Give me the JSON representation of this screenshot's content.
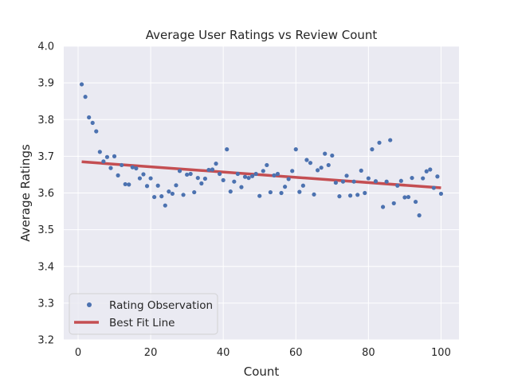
{
  "chart_data": {
    "type": "scatter",
    "title": "Average User Ratings vs Review Count",
    "xlabel": "Count",
    "ylabel": "Average Ratings",
    "xlim": [
      -3.95,
      104.95
    ],
    "ylim": [
      3.2,
      4.0
    ],
    "xticks": [
      0,
      20,
      40,
      60,
      80,
      100
    ],
    "yticks": [
      3.2,
      3.3,
      3.4,
      3.5,
      3.6,
      3.7,
      3.8,
      3.9,
      4.0
    ],
    "x_tick_labels": [
      "0",
      "20",
      "40",
      "60",
      "80",
      "100"
    ],
    "y_tick_labels": [
      "3.2",
      "3.3",
      "3.4",
      "3.5",
      "3.6",
      "3.7",
      "3.8",
      "3.9",
      "4.0"
    ],
    "grid": true,
    "legend_position": "lower-left",
    "colors": {
      "background": "#eaeaf2",
      "grid": "#ffffff",
      "points": "#4c72b0",
      "fit_line": "#c44e52"
    },
    "series": [
      {
        "name": "Rating Observation",
        "kind": "points",
        "x": [
          1,
          2,
          3,
          4,
          5,
          6,
          7,
          8,
          9,
          10,
          11,
          12,
          13,
          14,
          15,
          16,
          17,
          18,
          19,
          20,
          21,
          22,
          23,
          24,
          25,
          26,
          27,
          28,
          29,
          30,
          31,
          32,
          33,
          34,
          35,
          36,
          37,
          38,
          39,
          40,
          41,
          42,
          43,
          44,
          45,
          46,
          47,
          48,
          49,
          50,
          51,
          52,
          53,
          54,
          55,
          56,
          57,
          58,
          59,
          60,
          61,
          62,
          63,
          64,
          65,
          66,
          67,
          68,
          69,
          70,
          71,
          72,
          73,
          74,
          75,
          76,
          77,
          78,
          79,
          80,
          81,
          82,
          83,
          84,
          85,
          86,
          87,
          88,
          89,
          90,
          91,
          92,
          93,
          94,
          95,
          96,
          97,
          98,
          99,
          100
        ],
        "y": [
          3.896,
          3.862,
          3.806,
          3.791,
          3.768,
          3.712,
          3.686,
          3.698,
          3.668,
          3.7,
          3.648,
          3.676,
          3.624,
          3.623,
          3.67,
          3.667,
          3.64,
          3.651,
          3.619,
          3.64,
          3.589,
          3.62,
          3.591,
          3.566,
          3.604,
          3.598,
          3.621,
          3.66,
          3.595,
          3.65,
          3.652,
          3.602,
          3.641,
          3.626,
          3.639,
          3.663,
          3.664,
          3.68,
          3.652,
          3.635,
          3.719,
          3.604,
          3.631,
          3.652,
          3.616,
          3.644,
          3.641,
          3.646,
          3.652,
          3.592,
          3.66,
          3.676,
          3.602,
          3.648,
          3.652,
          3.6,
          3.617,
          3.638,
          3.66,
          3.719,
          3.603,
          3.62,
          3.69,
          3.682,
          3.596,
          3.662,
          3.669,
          3.707,
          3.676,
          3.702,
          3.628,
          3.591,
          3.631,
          3.647,
          3.593,
          3.631,
          3.595,
          3.661,
          3.6,
          3.64,
          3.719,
          3.632,
          3.737,
          3.562,
          3.631,
          3.744,
          3.572,
          3.62,
          3.633,
          3.588,
          3.589,
          3.641,
          3.576,
          3.539,
          3.64,
          3.659,
          3.664,
          3.614,
          3.645,
          3.598
        ]
      },
      {
        "name": "Best Fit Line",
        "kind": "line",
        "x": [
          1,
          100
        ],
        "y": [
          3.685,
          3.614
        ]
      }
    ]
  }
}
